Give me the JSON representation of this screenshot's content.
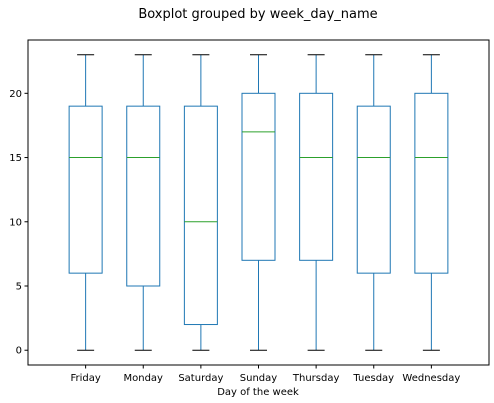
{
  "chart_data": {
    "type": "box",
    "title": "Boxplot grouped by week_day_name",
    "xlabel": "Day of the week",
    "ylabel": "",
    "ylim": [
      -1.15,
      24.15
    ],
    "yticks": [
      0,
      5,
      10,
      15,
      20
    ],
    "grid": false,
    "categories": [
      "Friday",
      "Monday",
      "Saturday",
      "Sunday",
      "Thursday",
      "Tuesday",
      "Wednesday"
    ],
    "boxes": [
      {
        "category": "Friday",
        "min": 0,
        "q1": 6,
        "median": 15,
        "q3": 19,
        "max": 23
      },
      {
        "category": "Monday",
        "min": 0,
        "q1": 5,
        "median": 15,
        "q3": 19,
        "max": 23
      },
      {
        "category": "Saturday",
        "min": 0,
        "q1": 2,
        "median": 10,
        "q3": 19,
        "max": 23
      },
      {
        "category": "Sunday",
        "min": 0,
        "q1": 7,
        "median": 17,
        "q3": 20,
        "max": 23
      },
      {
        "category": "Thursday",
        "min": 0,
        "q1": 7,
        "median": 15,
        "q3": 20,
        "max": 23
      },
      {
        "category": "Tuesday",
        "min": 0,
        "q1": 6,
        "median": 15,
        "q3": 19,
        "max": 23
      },
      {
        "category": "Wednesday",
        "min": 0,
        "q1": 6,
        "median": 15,
        "q3": 20,
        "max": 23
      }
    ],
    "colors": {
      "box": "#1f77b4",
      "median": "#2ca02c",
      "whisker": "#1f77b4",
      "cap": "#000000",
      "axis": "#000000"
    }
  }
}
